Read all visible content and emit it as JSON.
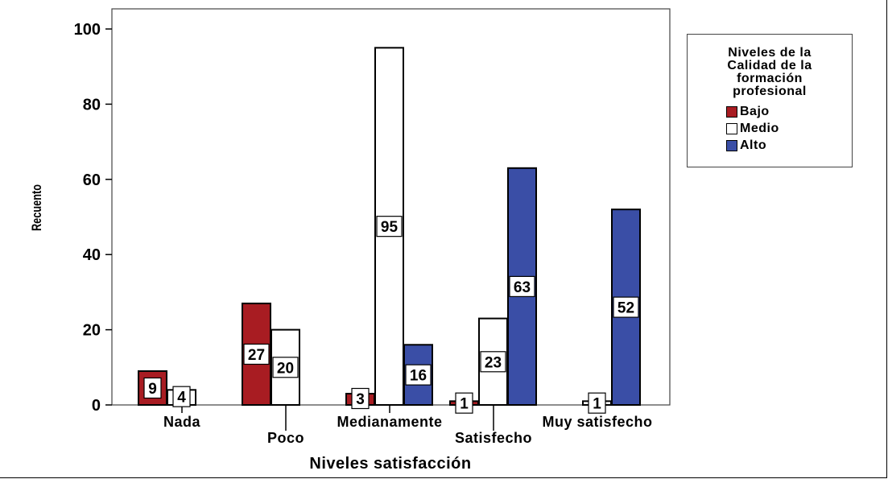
{
  "chart_data": {
    "type": "bar",
    "xlabel": "Niveles satisfacción",
    "ylabel": "Recuento",
    "ylim": [
      0,
      105
    ],
    "yticks": [
      0,
      20,
      40,
      60,
      80,
      100
    ],
    "categories": [
      "Nada",
      "Poco",
      "Medianamente",
      "Satisfecho",
      "Muy satisfecho"
    ],
    "series": [
      {
        "name": "Bajo",
        "color": "#a81c22",
        "values": [
          9,
          27,
          3,
          1,
          null
        ],
        "labels": [
          "9",
          "27",
          "3",
          "1",
          null
        ]
      },
      {
        "name": "Medio",
        "color": "#ffffff",
        "values": [
          4,
          20,
          95,
          23,
          1
        ],
        "labels": [
          "4",
          "20",
          "95",
          "23",
          "1"
        ]
      },
      {
        "name": "Alto",
        "color": "#3a4ea6",
        "values": [
          null,
          null,
          16,
          63,
          52
        ],
        "labels": [
          null,
          null,
          "16",
          "63",
          "52"
        ]
      }
    ],
    "legend": {
      "title": "Niveles de la Calidad de la formación profesional",
      "title_lines": [
        "Niveles de la",
        "Calidad de la",
        "formación",
        "profesional"
      ],
      "placement": "right"
    },
    "grid": false
  }
}
